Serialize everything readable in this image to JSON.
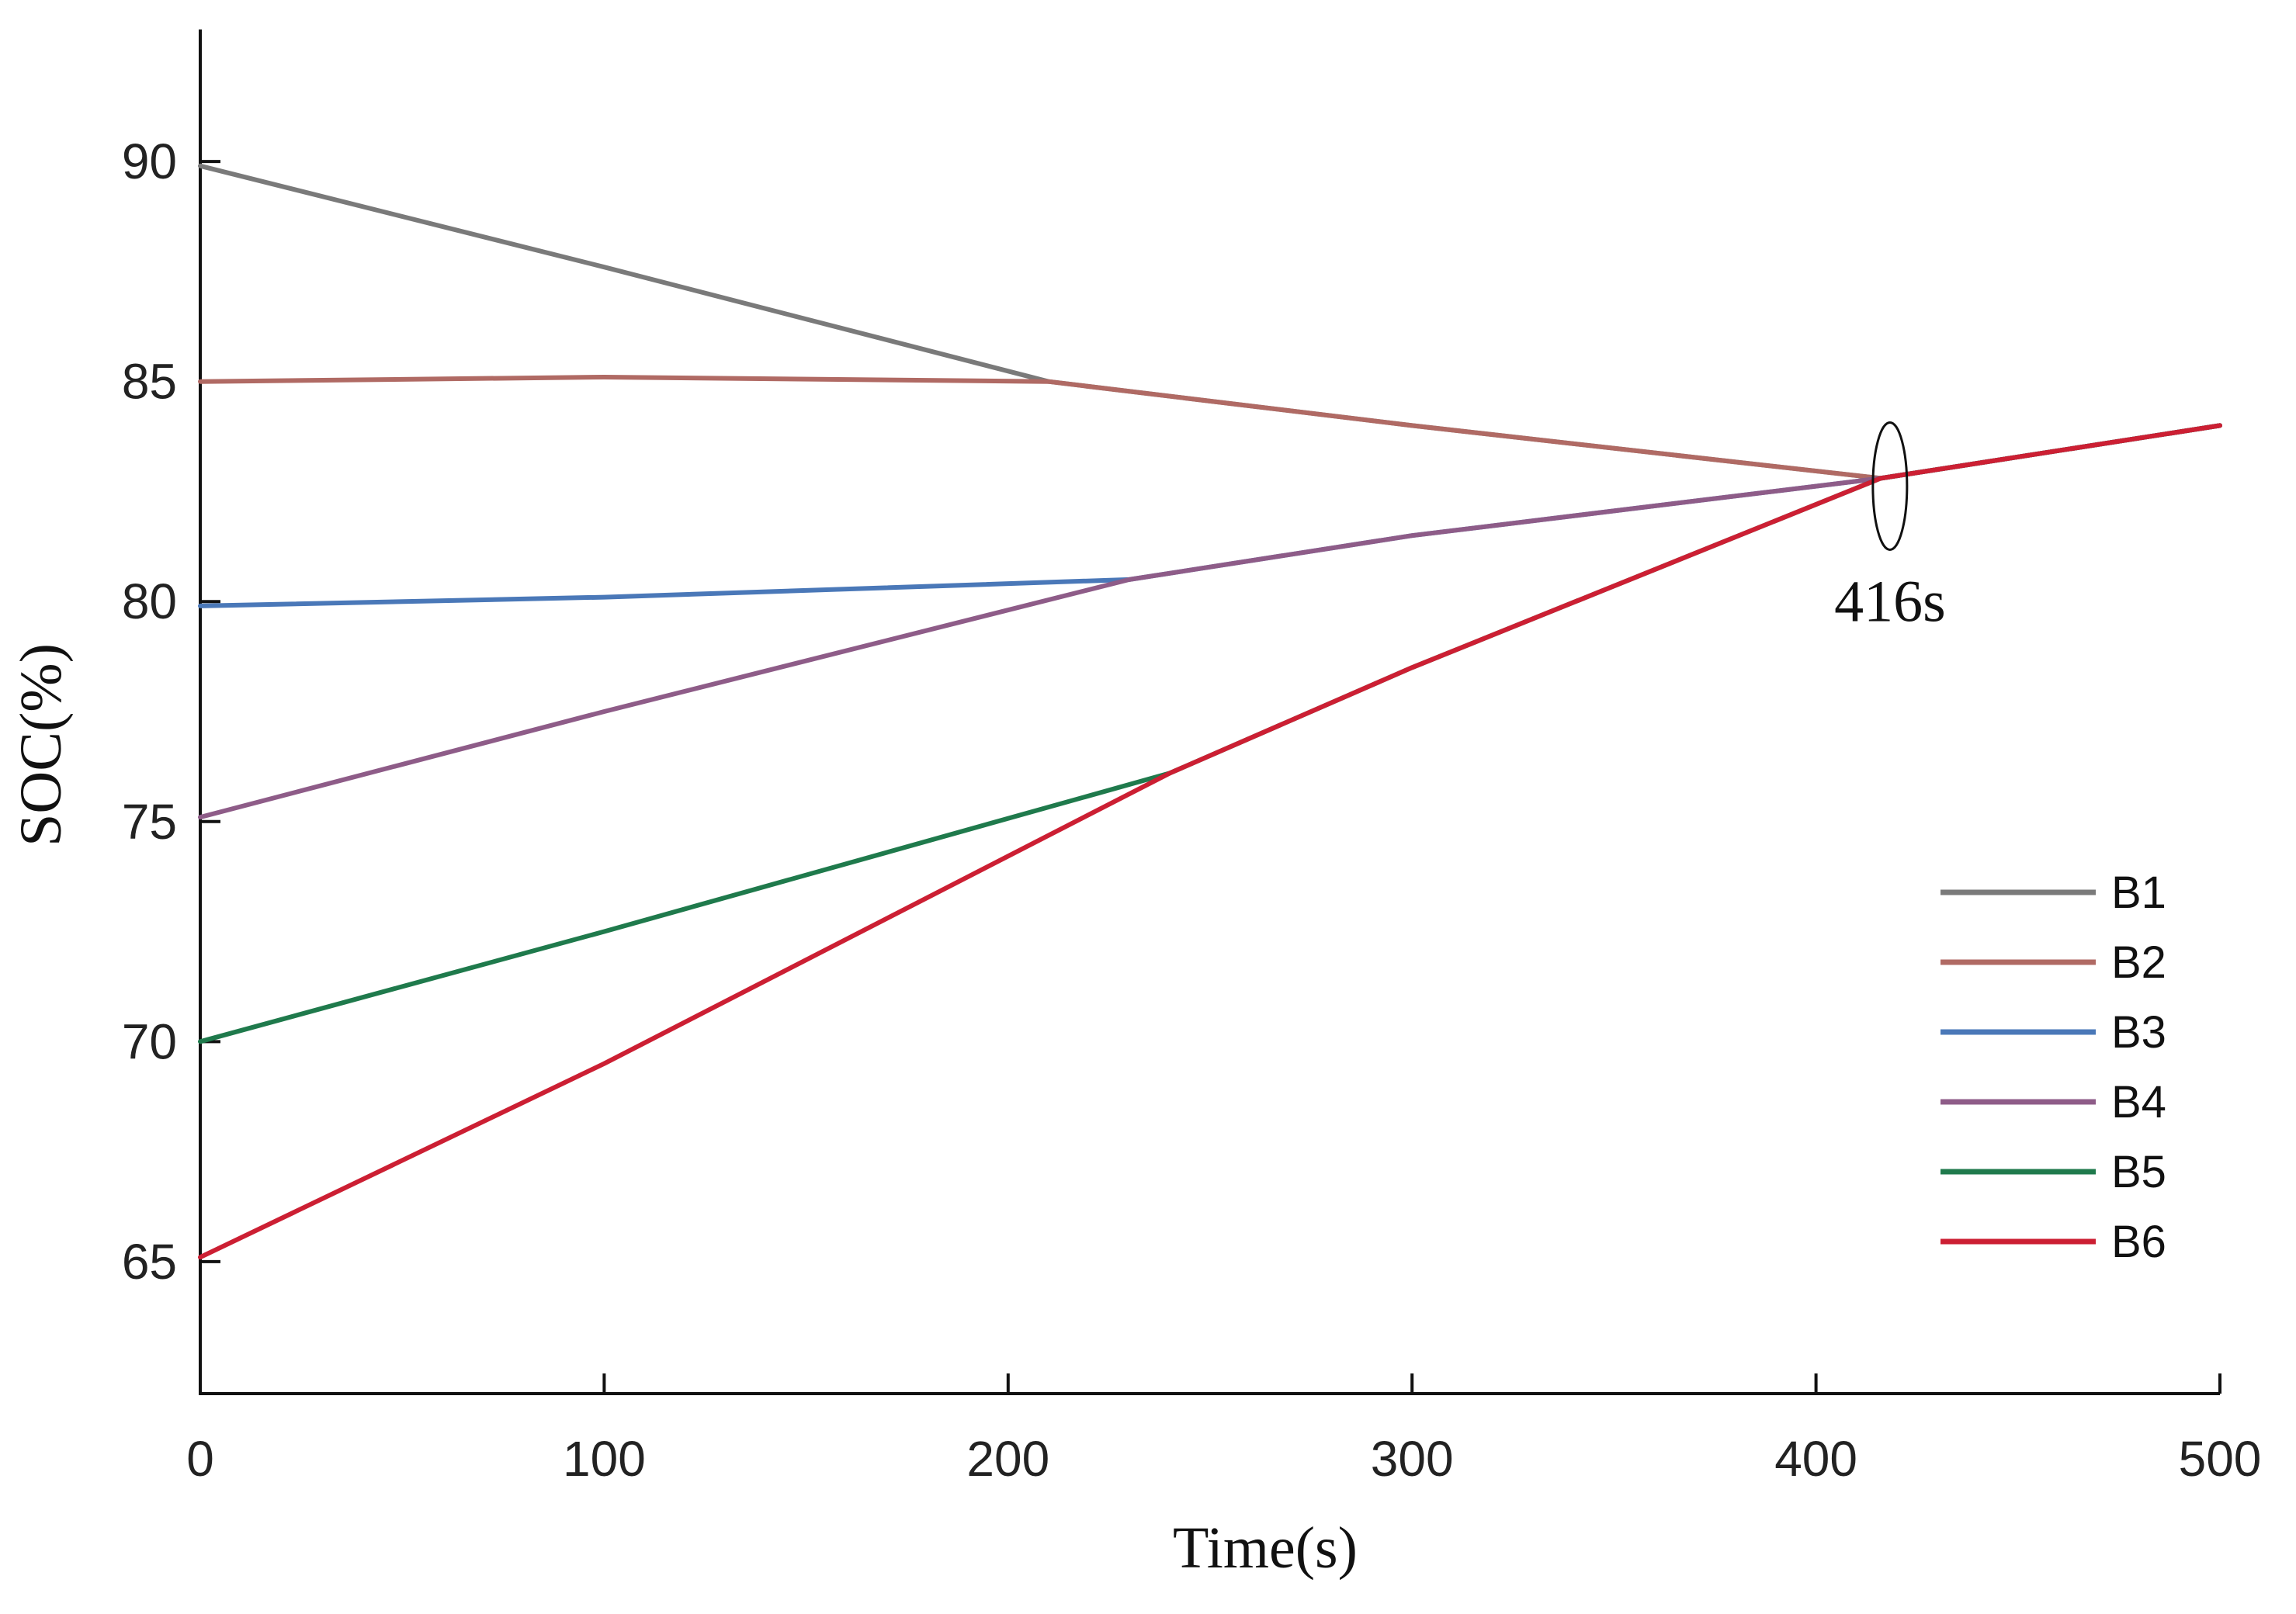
{
  "chart_data": {
    "type": "line",
    "title": "",
    "xlabel": "Time(s)",
    "ylabel": "SOC(%)",
    "xlim": [
      0,
      500
    ],
    "ylim": [
      62,
      93
    ],
    "xticks": [
      0,
      100,
      200,
      300,
      400,
      500
    ],
    "yticks": [
      65,
      70,
      75,
      80,
      85,
      90
    ],
    "grid": false,
    "legend_position": "bottom-right",
    "annotation": {
      "text": "416s",
      "x": 416,
      "y": 82.8
    },
    "series": [
      {
        "name": "B1",
        "color": "#7a7a7a",
        "points": [
          [
            0,
            89.9
          ],
          [
            100,
            87.6
          ],
          [
            210,
            85.0
          ],
          [
            300,
            84.0
          ],
          [
            416,
            82.8
          ],
          [
            500,
            84.0
          ]
        ]
      },
      {
        "name": "B2",
        "color": "#b06a64",
        "points": [
          [
            0,
            85.0
          ],
          [
            100,
            85.1
          ],
          [
            210,
            85.0
          ],
          [
            300,
            84.0
          ],
          [
            416,
            82.8
          ],
          [
            500,
            84.0
          ]
        ]
      },
      {
        "name": "B3",
        "color": "#4a78b8",
        "points": [
          [
            0,
            79.9
          ],
          [
            100,
            80.1
          ],
          [
            230,
            80.5
          ],
          [
            300,
            81.5
          ],
          [
            416,
            82.8
          ],
          [
            500,
            84.0
          ]
        ]
      },
      {
        "name": "B4",
        "color": "#8e5c88",
        "points": [
          [
            0,
            75.1
          ],
          [
            100,
            77.5
          ],
          [
            230,
            80.5
          ],
          [
            300,
            81.5
          ],
          [
            416,
            82.8
          ],
          [
            500,
            84.0
          ]
        ]
      },
      {
        "name": "B5",
        "color": "#1f7a4c",
        "points": [
          [
            0,
            70.0
          ],
          [
            100,
            72.5
          ],
          [
            240,
            76.1
          ],
          [
            300,
            78.5
          ],
          [
            416,
            82.8
          ],
          [
            500,
            84.0
          ]
        ]
      },
      {
        "name": "B6",
        "color": "#cc1f33",
        "points": [
          [
            0,
            65.1
          ],
          [
            100,
            69.5
          ],
          [
            240,
            76.1
          ],
          [
            300,
            78.5
          ],
          [
            416,
            82.8
          ],
          [
            500,
            84.0
          ]
        ]
      }
    ]
  }
}
